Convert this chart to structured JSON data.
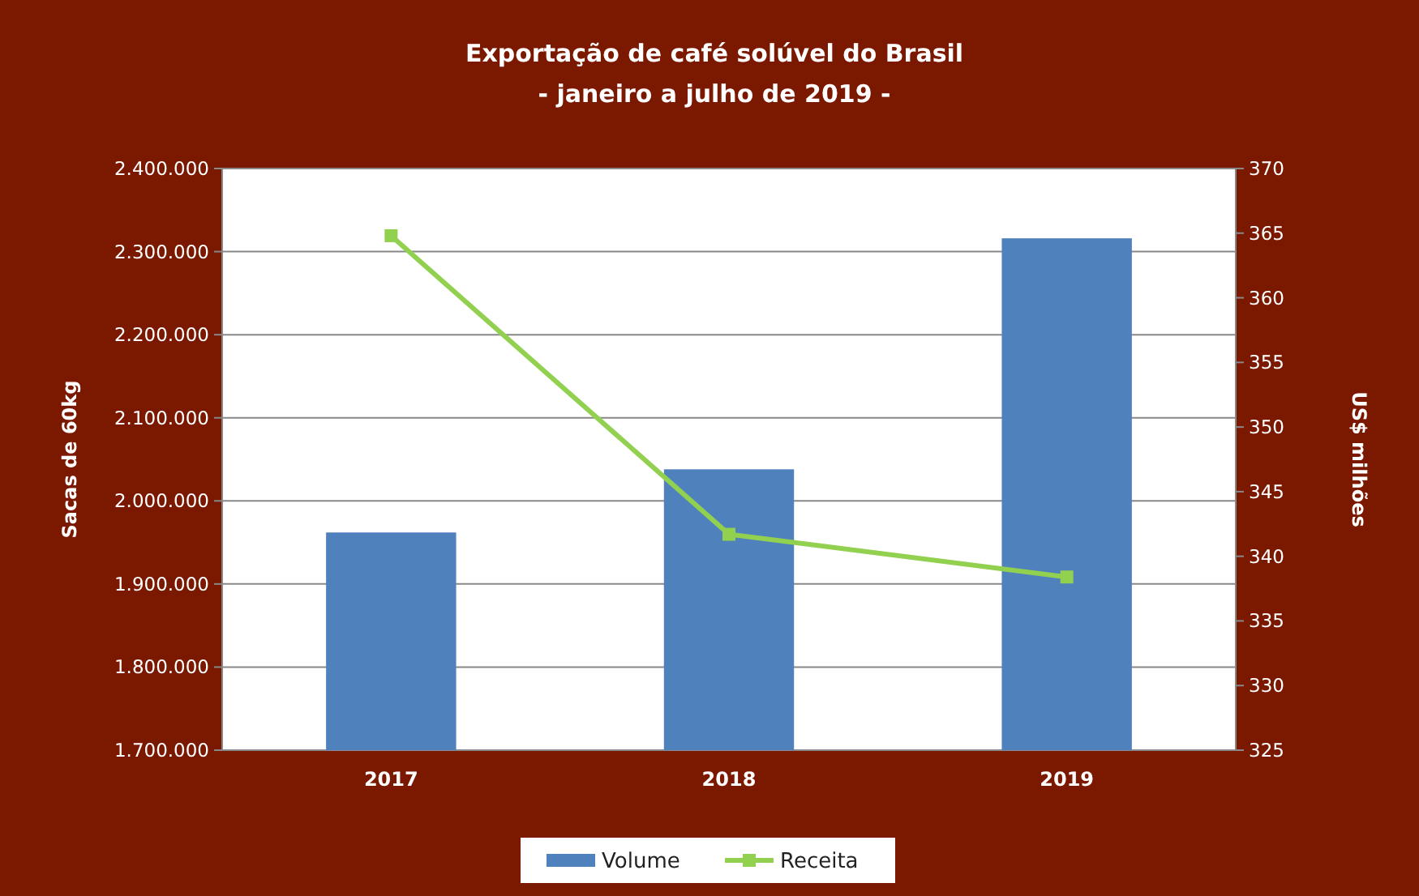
{
  "chart_data": {
    "type": "bar",
    "title": "Exportação de café solúvel do Brasil",
    "subtitle": "- janeiro a julho de 2019 -",
    "ylabel": "Sacas de 60kg",
    "y2label": "US$ milhões",
    "categories": [
      "2017",
      "2018",
      "2019"
    ],
    "series": [
      {
        "name": "Volume",
        "color": "#4f81bd",
        "values": [
          1962000,
          2038000,
          2316000
        ]
      },
      {
        "name": "Receita",
        "type": "line",
        "axis": "y2",
        "color": "#92d050",
        "marker": "square",
        "values": [
          364.8,
          341.7,
          338.4
        ]
      }
    ],
    "ylim": [
      1700000,
      2400000
    ],
    "yticks": [
      {
        "value": 1700000,
        "label": "1.700.000"
      },
      {
        "value": 1800000,
        "label": "1.800.000"
      },
      {
        "value": 1900000,
        "label": "1.900.000"
      },
      {
        "value": 2000000,
        "label": "2.000.000"
      },
      {
        "value": 2100000,
        "label": "2.100.000"
      },
      {
        "value": 2200000,
        "label": "2.200.000"
      },
      {
        "value": 2300000,
        "label": "2.300.000"
      },
      {
        "value": 2400000,
        "label": "2.400.000"
      }
    ],
    "y2lim": [
      325,
      370
    ],
    "y2ticks": [
      325,
      330,
      335,
      340,
      345,
      350,
      355,
      360,
      365,
      370
    ],
    "grid": "y",
    "legend": "bottom"
  }
}
